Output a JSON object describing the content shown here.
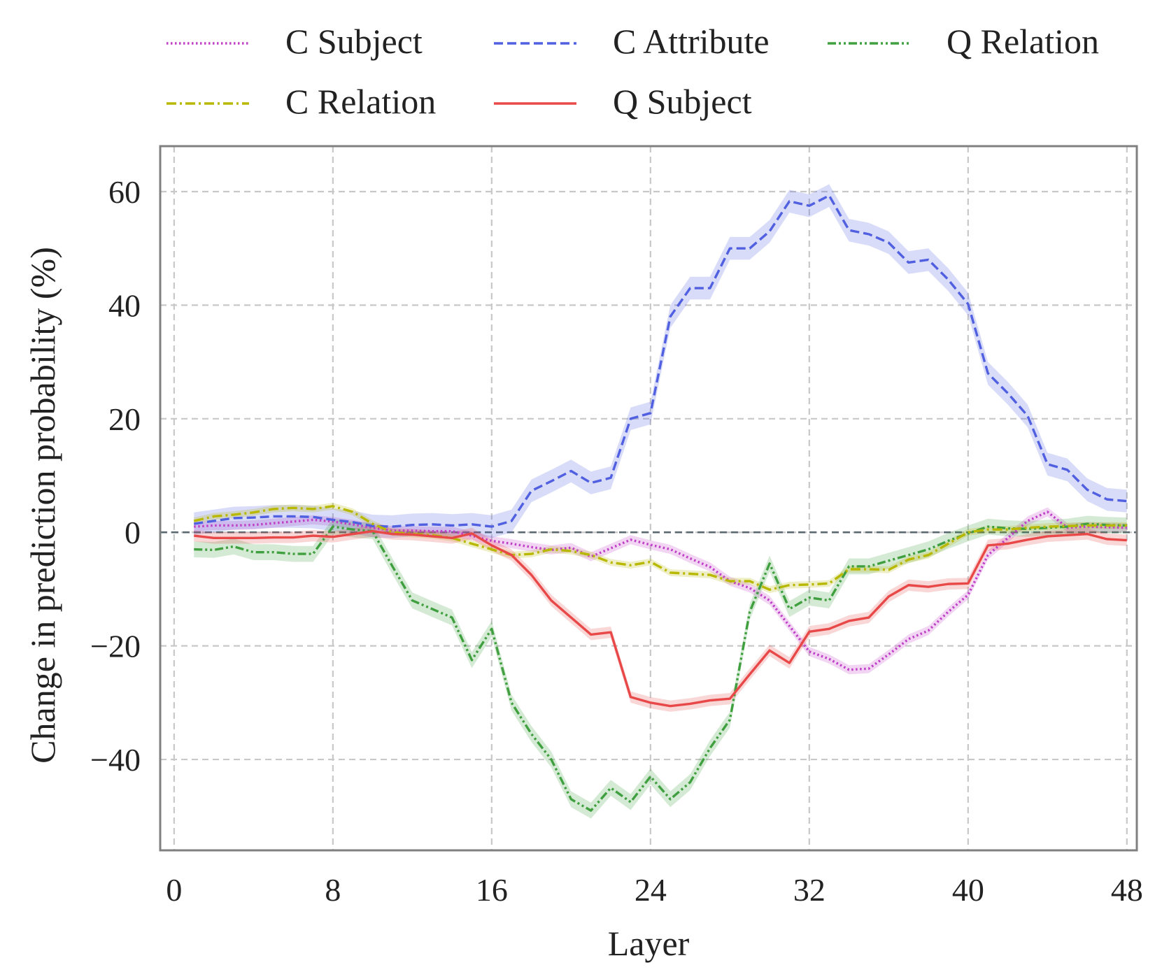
{
  "chart_data": {
    "type": "line",
    "title": "",
    "xlabel": "Layer",
    "ylabel": "Change in prediction probability (%)",
    "xlim": [
      -0.7,
      48.5
    ],
    "ylim": [
      -56,
      68
    ],
    "x_ticks": [
      0,
      8,
      16,
      24,
      32,
      40,
      48
    ],
    "y_ticks": [
      -40,
      -20,
      0,
      20,
      40,
      60
    ],
    "grid": true,
    "legend_position": "top",
    "reference_line": 0,
    "x": [
      1,
      2,
      3,
      4,
      5,
      6,
      7,
      8,
      9,
      10,
      11,
      12,
      13,
      14,
      15,
      16,
      17,
      18,
      19,
      20,
      21,
      22,
      23,
      24,
      25,
      26,
      27,
      28,
      29,
      30,
      31,
      32,
      33,
      34,
      35,
      36,
      37,
      38,
      39,
      40,
      41,
      42,
      43,
      44,
      45,
      46,
      47,
      48
    ],
    "series": [
      {
        "name": "C Subject",
        "color": "#c040c8",
        "dash": "dotted",
        "band": 0.8,
        "values": [
          1,
          1.2,
          1.2,
          1.3,
          1.6,
          1.9,
          2.2,
          1.9,
          1.4,
          0.8,
          0.3,
          0.3,
          0.2,
          0.2,
          -0.6,
          -1.5,
          -2,
          -2.6,
          -3.1,
          -2.7,
          -4.3,
          -2.8,
          -1.3,
          -2.2,
          -3,
          -4.6,
          -6.1,
          -8.6,
          -9.8,
          -12,
          -16.5,
          -21,
          -22.3,
          -24.2,
          -24,
          -21.5,
          -18.8,
          -17.3,
          -14,
          -11,
          -4,
          -1,
          2,
          3.6,
          0.8,
          1,
          0.9,
          0.8
        ]
      },
      {
        "name": "C Attribute",
        "color": "#5060e0",
        "dash": "dashed",
        "band": 2.0,
        "values": [
          1.5,
          2,
          2.5,
          2.6,
          2.8,
          2.8,
          2.7,
          2.2,
          1.8,
          1.1,
          1,
          1.3,
          1.4,
          1.2,
          1.4,
          1,
          2,
          7.3,
          9,
          10.8,
          8.7,
          9.6,
          20,
          21,
          38,
          43,
          43,
          50,
          50,
          53,
          58.3,
          57.5,
          59.3,
          53.2,
          52.5,
          51,
          47.5,
          48,
          44.5,
          40.2,
          28,
          24.5,
          20.5,
          12,
          11,
          7.5,
          5.8,
          5.5
        ]
      },
      {
        "name": "Q Relation",
        "color": "#40a040",
        "dash": "dashdotdot",
        "band": 1.4,
        "values": [
          -3,
          -3.1,
          -2.5,
          -3.5,
          -3.5,
          -3.8,
          -3.8,
          1,
          0.5,
          0.2,
          -6,
          -12,
          -13.5,
          -15,
          -22.5,
          -17,
          -30,
          -35.5,
          -40,
          -47,
          -49,
          -45,
          -47.5,
          -43,
          -47,
          -44,
          -38,
          -33,
          -14,
          -5.5,
          -13.5,
          -11.5,
          -12,
          -6,
          -6,
          -5,
          -4,
          -3,
          -1.5,
          -0.2,
          1,
          0.7,
          0.6,
          0.8,
          1,
          1.5,
          1.3,
          1.2
        ]
      },
      {
        "name": "C Relation",
        "color": "#b8b800",
        "dash": "dashdot",
        "band": 0.6,
        "values": [
          2,
          2.8,
          3.1,
          3.5,
          4.1,
          4.3,
          4.1,
          4.6,
          3.6,
          1.5,
          0,
          -0.3,
          -0.5,
          -1,
          -2,
          -3,
          -4,
          -3.8,
          -3,
          -3.3,
          -4,
          -5.3,
          -5.8,
          -5.2,
          -7.1,
          -7.3,
          -7.5,
          -8.6,
          -8.6,
          -10.1,
          -9.3,
          -9.2,
          -9,
          -6.5,
          -6.5,
          -6.6,
          -4.8,
          -4,
          -2,
          0,
          0.5,
          0.5,
          0.8,
          1,
          1.1,
          1.2,
          1.2,
          1.2
        ]
      },
      {
        "name": "Q Subject",
        "color": "#e84848",
        "dash": "solid",
        "band": 1.0,
        "values": [
          -0.6,
          -1,
          -1,
          -1,
          -0.9,
          -0.9,
          -0.6,
          -0.8,
          -0.3,
          0.2,
          -0.3,
          -0.4,
          -0.7,
          -1,
          -0.2,
          -2.3,
          -4,
          -7.5,
          -12,
          -15,
          -18,
          -17.6,
          -29,
          -30,
          -30.6,
          -30.2,
          -29.6,
          -29.3,
          -25,
          -20.8,
          -23,
          -17.5,
          -17,
          -15.6,
          -15,
          -11.3,
          -9.3,
          -9.6,
          -9.1,
          -9,
          -2.3,
          -2,
          -1.3,
          -0.7,
          -0.5,
          -0.3,
          -1.2,
          -1.4
        ]
      }
    ]
  }
}
